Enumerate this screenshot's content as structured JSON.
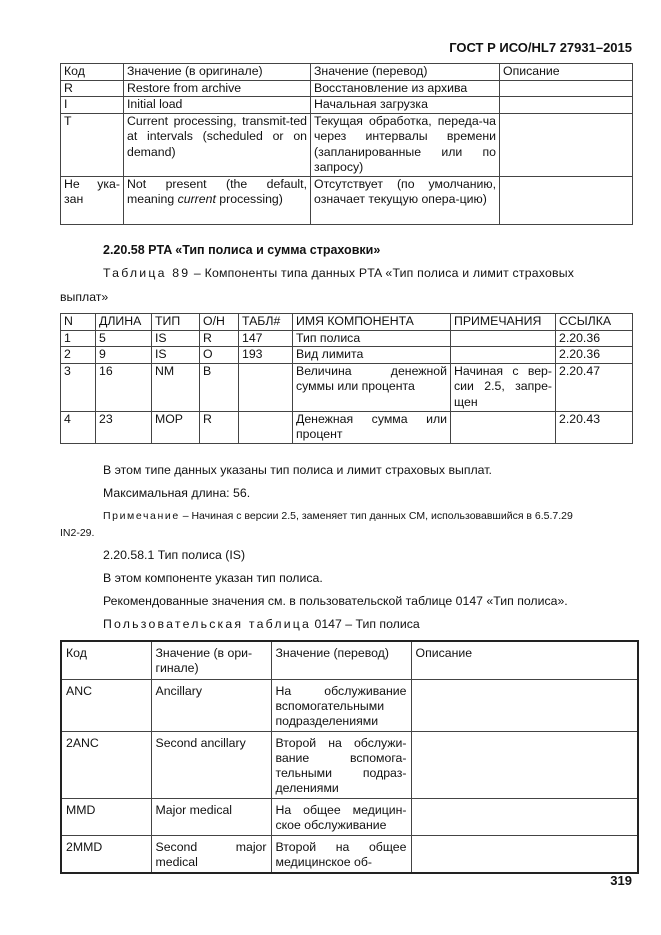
{
  "header": {
    "doc_id": "ГОСТ Р ИСО/HL7 27931–2015"
  },
  "table1": {
    "columns": [
      "Код",
      "Значение (в оригинале)",
      "Значение (перевод)",
      "Описание"
    ],
    "rows": [
      [
        "R",
        "Restore from archive",
        "Восстановление из архива",
        ""
      ],
      [
        "I",
        "Initial load",
        "Начальная загрузка",
        ""
      ],
      [
        "T",
        "Current processing, transmit-ted at intervals (scheduled or on demand)",
        "Текущая обработка, переда-ча через интервалы времени (запланированные или по запросу)",
        ""
      ],
      [
        "Не ука-зан",
        {
          "before": "Not present (the default, meaning ",
          "italic": "current",
          "after": " processing)"
        },
        "Отсутствует (по умолчанию, означает текущую опера-цию)",
        ""
      ]
    ]
  },
  "section": {
    "heading": "2.20.58 PTA «Тип полиса и сумма страховки»",
    "table_caption_label": "Таблица 89",
    "table_caption_text": " – Компоненты типа данных PTA «Тип полиса и лимит страховых",
    "table_caption_cont": "выплат»"
  },
  "table2": {
    "columns": [
      "N",
      "ДЛИНА",
      "ТИП",
      "О/Н",
      "ТАБЛ#",
      "ИМЯ КОМПОНЕНТА",
      "ПРИМЕЧАНИЯ",
      "ССЫЛКА"
    ],
    "rows": [
      [
        "1",
        "5",
        "IS",
        "R",
        "147",
        "Тип полиса",
        "",
        "2.20.36"
      ],
      [
        "2",
        "9",
        "IS",
        " O",
        "193",
        "Вид лимита",
        "",
        "2.20.36"
      ],
      [
        "3",
        "16",
        "NM",
        "B",
        "",
        "Величина денежной суммы или процента",
        "Начиная с вер-сии 2.5, запре-щен",
        "2.20.47"
      ],
      [
        "4",
        "23",
        "MOP",
        "R",
        "",
        "Денежная сумма или процент",
        "",
        "2.20.43"
      ]
    ]
  },
  "paragraphs": {
    "p1": "В этом типе данных указаны тип полиса и лимит страховых выплат.",
    "p2": "Максимальная длина: 56.",
    "note_label": "Примечание",
    "note_text": " – Начиная с версии 2.5, заменяет тип данных CM, использовавшийся в 6.5.7.29",
    "note_cont": "IN2-29.",
    "sub_heading": "2.20.58.1 Тип полиса (IS)",
    "p3": "В этом компоненте указан тип полиса.",
    "p4": "Рекомендованные значения см. в пользовательской таблице 0147 «Тип полиса».",
    "table3_caption_label": "Пользовательская таблица",
    "table3_caption_text": " 0147 – Тип полиса"
  },
  "table3": {
    "columns": [
      "Код",
      "Значение (в ори-гинале)",
      "Значение (перевод)",
      "Описание"
    ],
    "rows": [
      [
        "ANC",
        "Ancillary",
        "На обслуживание вспомогательными подразделениями",
        ""
      ],
      [
        "2ANC",
        "Second ancillary",
        "Второй на обслужи-вание вспомога-тельными подраз-делениями",
        ""
      ],
      [
        "MMD",
        "Major medical",
        "На общее медицин-ское обслуживание",
        ""
      ],
      [
        "2MMD",
        "Second major medical",
        "Второй на общее медицинское об-",
        ""
      ]
    ]
  },
  "footer": {
    "page_number": "319"
  }
}
